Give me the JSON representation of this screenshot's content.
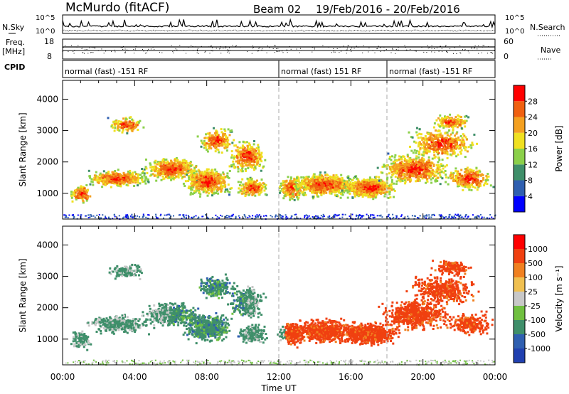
{
  "header": {
    "station": "McMurdo (fitACF)",
    "beam": "Beam 02",
    "dates": "19/Feb/2016 - 20/Feb/2016"
  },
  "left_labels": {
    "nsky": "N.Sky",
    "freq_line1": "Freq.",
    "freq_line2": "[MHz]",
    "cpid": "CPID"
  },
  "right_labels": {
    "nsearch": "N.Search",
    "nave": "Nave"
  },
  "top_panel_ticks": {
    "noise_left_top": "10^5",
    "noise_left_bottom": "10^0",
    "noise_right_top": "10^5",
    "noise_right_bottom": "10^0",
    "freq_top": "18",
    "freq_bottom": "8",
    "nave_top": "60",
    "nave_bottom": "0"
  },
  "cpid_segments": [
    {
      "label": "normal (fast) -151 RF",
      "start": 0,
      "end": 12
    },
    {
      "label": "normal (fast) 151 RF",
      "start": 12,
      "end": 18
    },
    {
      "label": "normal (fast) -151 RF",
      "start": 18,
      "end": 24
    }
  ],
  "chart_data": [
    {
      "type": "heatmap",
      "title": "Power",
      "xlabel": "Time UT",
      "ylabel": "Slant Range [km]",
      "xlim": [
        0,
        24
      ],
      "ylim": [
        180,
        4600
      ],
      "x_ticks": [
        "00:00",
        "04:00",
        "08:00",
        "12:00",
        "16:00",
        "20:00",
        "00:00"
      ],
      "y_ticks": [
        "1000",
        "2000",
        "3000",
        "4000"
      ],
      "colorbar": {
        "label": "Power [dB]",
        "ticks": [
          "4",
          "8",
          "12",
          "16",
          "20",
          "24",
          "28"
        ],
        "range": [
          0,
          30
        ],
        "colors": [
          "#0000ff",
          "#2f5fb0",
          "#3f8f6a",
          "#8bd04a",
          "#f0e020",
          "#f4a020",
          "#f06010",
          "#ff0000"
        ]
      },
      "vertical_markers_hours": [
        12,
        18
      ]
    },
    {
      "type": "heatmap",
      "title": "Velocity",
      "xlabel": "Time UT",
      "ylabel": "Slant Range [km]",
      "xlim": [
        0,
        24
      ],
      "ylim": [
        180,
        4600
      ],
      "x_ticks": [
        "00:00",
        "04:00",
        "08:00",
        "12:00",
        "16:00",
        "20:00",
        "00:00"
      ],
      "y_ticks": [
        "1000",
        "2000",
        "3000",
        "4000"
      ],
      "colorbar": {
        "label": "Velocity [m s⁻¹]",
        "ticks": [
          "1000",
          "500",
          "100",
          "25",
          "-25",
          "-100",
          "-500",
          "-1000"
        ],
        "colors": [
          "#2040b0",
          "#2f5fb0",
          "#3f8f6a",
          "#70c040",
          "#c8c8c8",
          "#f0c050",
          "#f08020",
          "#f04010",
          "#ff0000"
        ]
      },
      "vertical_markers_hours": [
        12,
        18
      ]
    }
  ]
}
